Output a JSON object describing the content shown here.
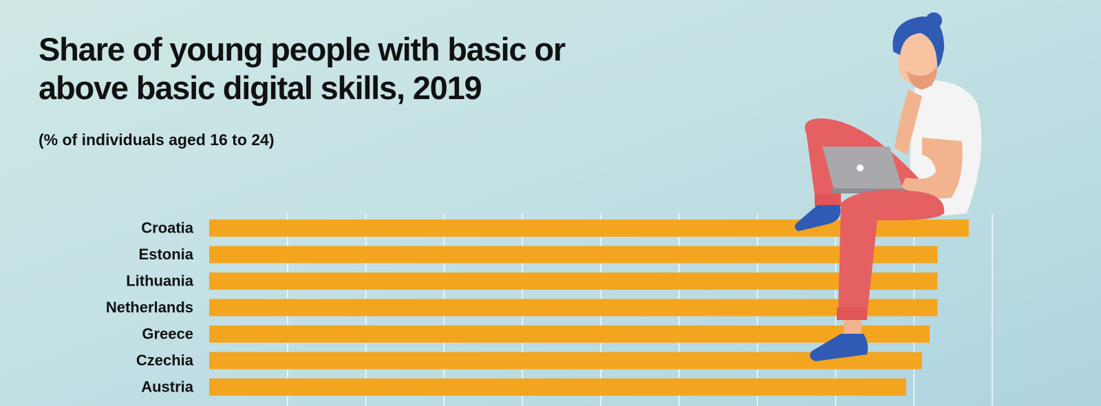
{
  "title": "Share of young people with basic or above basic digital skills, 2019",
  "subtitle": "(% of individuals aged 16 to 24)",
  "colors": {
    "bar": "#f3a51f",
    "gridline": "#ffffff",
    "text": "#111111"
  },
  "chart_data": {
    "type": "bar",
    "orientation": "horizontal",
    "title": "Share of young people with basic or above basic digital skills, 2019",
    "subtitle": "(% of individuals aged 16 to 24)",
    "categories": [
      "Croatia",
      "Estonia",
      "Lithuania",
      "Netherlands",
      "Greece",
      "Czechia",
      "Austria"
    ],
    "values": [
      97,
      93,
      93,
      93,
      92,
      91,
      89
    ],
    "xlim": [
      0,
      100
    ],
    "grid": true
  }
}
